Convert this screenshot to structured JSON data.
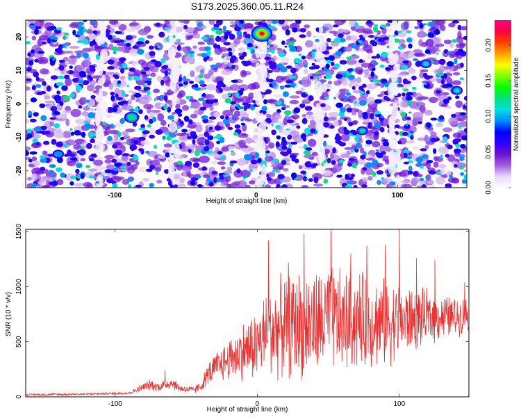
{
  "title": "S173.2025.360.05.11.R24",
  "chart_data": [
    {
      "type": "heatmap",
      "title": "S173.2025.360.05.11.R24",
      "xlabel": "Height of straight line (km)",
      "ylabel": "Frequency (Hz)",
      "xlim": [
        -163,
        149
      ],
      "ylim": [
        -25,
        25
      ],
      "xticks": [
        -100,
        0,
        100
      ],
      "xtick_labels": [
        "-100",
        "0",
        "100"
      ],
      "yticks": [
        -20,
        -10,
        0,
        10,
        20
      ],
      "ytick_labels": [
        "-20",
        "-10",
        "0",
        "10",
        "20"
      ],
      "colorbar": {
        "label": "Normalized spectral amplitude",
        "range": [
          0.0,
          0.235
        ],
        "ticks": [
          0.0,
          0.05,
          0.1,
          0.15,
          0.2
        ],
        "tick_labels": [
          "0.00",
          "0.05",
          "0.10",
          "0.15",
          "0.20"
        ],
        "colormap": [
          "#ffffff",
          "#e8d8f8",
          "#a060e0",
          "#7010d0",
          "#3000ff",
          "#0000ff",
          "#0090ff",
          "#00e0e0",
          "#00e080",
          "#00ff00",
          "#80ff00",
          "#ffff00",
          "#ffa000",
          "#ff4000",
          "#ff0040",
          "#ff0080"
        ]
      },
      "hotspots": [
        {
          "x": 4,
          "y": 21,
          "value": 0.22
        },
        {
          "x": -88,
          "y": -4,
          "value": 0.13
        },
        {
          "x": 75,
          "y": -8,
          "value": 0.12
        },
        {
          "x": 142,
          "y": 4,
          "value": 0.11
        },
        {
          "x": 120,
          "y": 12,
          "value": 0.11
        },
        {
          "x": -140,
          "y": -15,
          "value": 0.1
        }
      ]
    },
    {
      "type": "line",
      "xlabel": "Height of straight line (km)",
      "ylabel": "SNR (10 * v/v)",
      "xlim": [
        -163,
        149
      ],
      "ylim": [
        0,
        1520
      ],
      "xticks": [
        -100,
        0,
        100
      ],
      "xtick_labels": [
        "-100",
        "0",
        "100"
      ],
      "yticks": [
        0,
        500,
        1000,
        1500
      ],
      "ytick_labels": [
        "0",
        "500",
        "1000",
        "1500"
      ],
      "series": [
        {
          "name": "SNR",
          "color": "#ee3030",
          "envelope": {
            "x": [
              -163,
              -120,
              -90,
              -80,
              -75,
              -70,
              -60,
              -55,
              -50,
              -45,
              -40,
              -35,
              -30,
              -20,
              -10,
              0,
              5,
              10,
              20,
              30,
              40,
              50,
              60,
              70,
              80,
              90,
              100,
              110,
              120,
              130,
              140,
              149
            ],
            "mean": [
              20,
              25,
              35,
              90,
              110,
              90,
              130,
              80,
              70,
              60,
              90,
              200,
              260,
              340,
              420,
              470,
              560,
              600,
              640,
              660,
              650,
              700,
              680,
              690,
              700,
              670,
              690,
              700,
              720,
              730,
              720,
              760
            ],
            "spread": [
              10,
              12,
              15,
              45,
              60,
              50,
              70,
              40,
              40,
              40,
              60,
              110,
              150,
              220,
              300,
              380,
              420,
              480,
              520,
              560,
              560,
              560,
              530,
              500,
              480,
              440,
              400,
              330,
              280,
              240,
              200,
              180
            ]
          },
          "peaks": [
            {
              "x": -65,
              "y": 240
            },
            {
              "x": 8,
              "y": 1420
            },
            {
              "x": 22,
              "y": 1220
            },
            {
              "x": 33,
              "y": 1480
            },
            {
              "x": 52,
              "y": 1520
            },
            {
              "x": 66,
              "y": 1300
            },
            {
              "x": 77,
              "y": 1370
            },
            {
              "x": 90,
              "y": 1380
            },
            {
              "x": 100,
              "y": 1500
            },
            {
              "x": 112,
              "y": 1260
            },
            {
              "x": 125,
              "y": 1240
            },
            {
              "x": 146,
              "y": 1040
            }
          ]
        }
      ]
    }
  ]
}
